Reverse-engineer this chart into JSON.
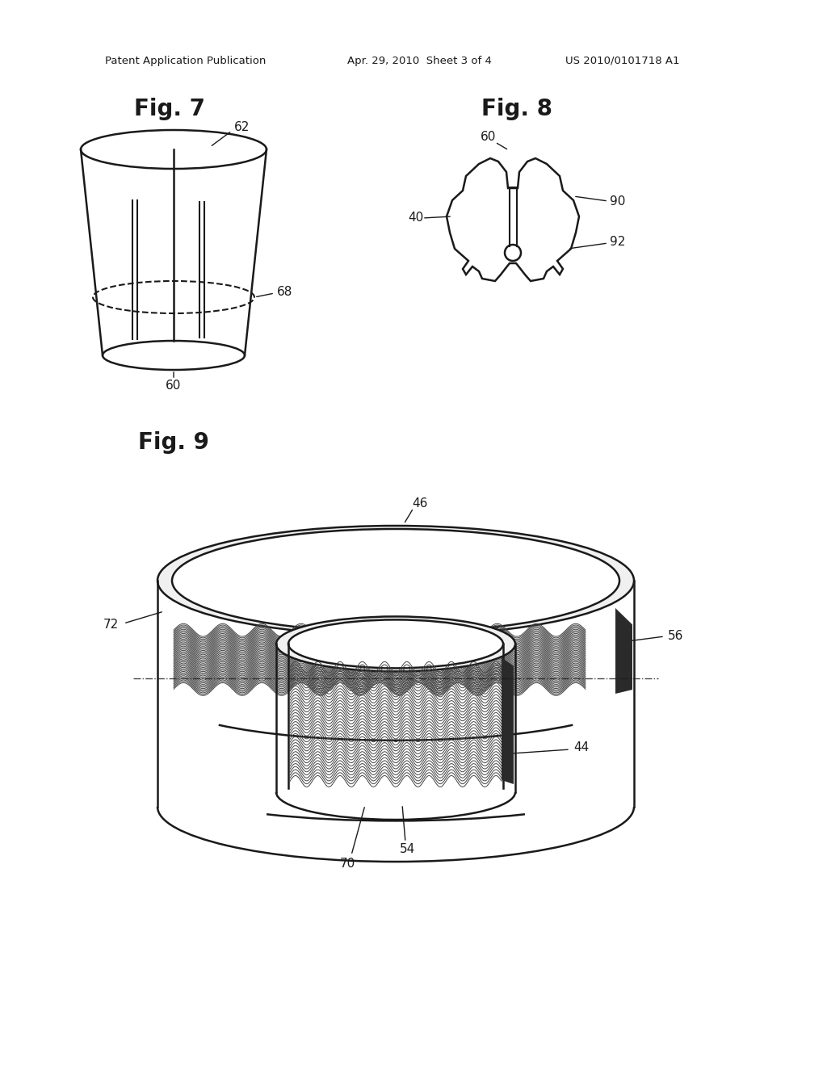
{
  "bg_color": "#ffffff",
  "header_left": "Patent Application Publication",
  "header_mid": "Apr. 29, 2010  Sheet 3 of 4",
  "header_right": "US 2010/0101718 A1",
  "fig7_label": "Fig. 7",
  "fig8_label": "Fig. 8",
  "fig9_label": "Fig. 9",
  "label_color": "#1a1a1a",
  "line_color": "#1a1a1a",
  "line_width": 1.8
}
